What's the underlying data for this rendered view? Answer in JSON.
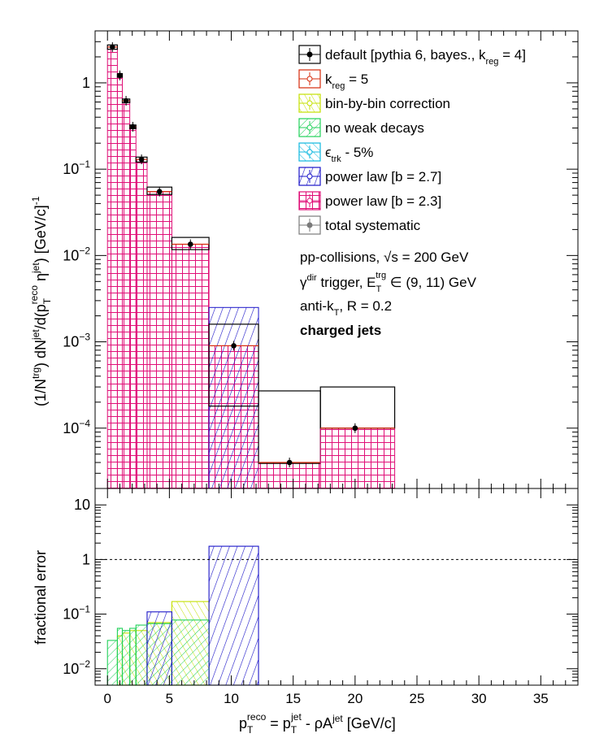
{
  "chart_data": [
    {
      "type": "bar",
      "panel": "spectrum",
      "scale": "log",
      "ylabel": "(1/N^trg) dN^jet/d(p_T^reco η^jet) [GeV/c]^-1",
      "ylim": [
        2e-05,
        4
      ],
      "xlim": [
        -1,
        38
      ],
      "y_ticks": [
        {
          "v": 0.0001,
          "base": "10",
          "exp": "−4"
        },
        {
          "v": 0.001,
          "base": "10",
          "exp": "−3"
        },
        {
          "v": 0.01,
          "base": "10",
          "exp": "−2"
        },
        {
          "v": 0.1,
          "base": "10",
          "exp": "−1"
        },
        {
          "v": 1,
          "base": "1",
          "exp": ""
        }
      ],
      "bins": [
        {
          "lo": 0.0,
          "hi": 0.8,
          "y": 2.6,
          "hi_band": 2.75,
          "lo_band": 2.45,
          "blue": false
        },
        {
          "lo": 0.8,
          "hi": 1.2,
          "y": 1.22,
          "hi_band": 1.28,
          "lo_band": 1.16,
          "blue": false
        },
        {
          "lo": 1.2,
          "hi": 1.8,
          "y": 0.62,
          "hi_band": 0.65,
          "lo_band": 0.59,
          "blue": false
        },
        {
          "lo": 1.8,
          "hi": 2.3,
          "y": 0.31,
          "hi_band": 0.325,
          "lo_band": 0.295,
          "blue": false
        },
        {
          "lo": 2.3,
          "hi": 3.2,
          "y": 0.13,
          "hi_band": 0.138,
          "lo_band": 0.121,
          "blue": false
        },
        {
          "lo": 3.2,
          "hi": 5.2,
          "y": 0.055,
          "hi_band": 0.062,
          "lo_band": 0.051,
          "blue": false
        },
        {
          "lo": 5.2,
          "hi": 8.2,
          "y": 0.0135,
          "hi_band": 0.0162,
          "lo_band": 0.0117,
          "blue": false
        },
        {
          "lo": 8.2,
          "hi": 12.2,
          "y": 0.0009,
          "hi_band": 0.0016,
          "lo_band": 0.00018,
          "blue": true,
          "blue_top": 0.0025
        },
        {
          "lo": 12.2,
          "hi": 17.2,
          "y": 4e-05,
          "hi_band": 0.00027,
          "lo_band": 3.9e-05,
          "blue": false
        },
        {
          "lo": 17.2,
          "hi": 23.2,
          "y": 0.0001,
          "hi_band": 0.0003,
          "lo_band": 0.0001,
          "blue": false
        }
      ],
      "points": [
        {
          "x": 0.4,
          "y": 2.6
        },
        {
          "x": 1.0,
          "y": 1.22
        },
        {
          "x": 1.5,
          "y": 0.62
        },
        {
          "x": 2.05,
          "y": 0.31
        },
        {
          "x": 2.75,
          "y": 0.13
        },
        {
          "x": 4.2,
          "y": 0.055
        },
        {
          "x": 6.7,
          "y": 0.0135
        },
        {
          "x": 10.2,
          "y": 0.0009
        },
        {
          "x": 14.7,
          "y": 4e-05
        },
        {
          "x": 20.0,
          "y": 0.0001
        }
      ]
    },
    {
      "type": "bar",
      "panel": "fractional",
      "scale": "log",
      "ylabel": "fractional error",
      "ylim": [
        0.005,
        20
      ],
      "reference_line": 1,
      "y_ticks": [
        {
          "v": 0.01,
          "base": "10",
          "exp": "−2"
        },
        {
          "v": 0.1,
          "base": "10",
          "exp": "−1"
        },
        {
          "v": 1,
          "base": "1",
          "exp": ""
        },
        {
          "v": 10,
          "base": "10",
          "exp": ""
        }
      ],
      "series": [
        {
          "name": "bin-by-bin correction",
          "color": "#c4e000",
          "bins": [
            [
              0.8,
              1.2,
              0.04
            ],
            [
              1.2,
              1.8,
              0.045
            ],
            [
              1.8,
              2.3,
              0.05
            ],
            [
              2.3,
              3.2,
              0.05
            ],
            [
              3.2,
              5.2,
              0.07
            ],
            [
              5.2,
              8.2,
              0.17
            ]
          ]
        },
        {
          "name": "no weak decays",
          "color": "#22d15a",
          "bins": [
            [
              0.0,
              0.8,
              0.033
            ],
            [
              0.8,
              1.2,
              0.055
            ],
            [
              1.2,
              1.8,
              0.05
            ],
            [
              1.8,
              2.3,
              0.055
            ],
            [
              2.3,
              3.2,
              0.063
            ],
            [
              3.2,
              5.2,
              0.067
            ],
            [
              5.2,
              8.2,
              0.078
            ]
          ]
        },
        {
          "name": "power law [b = 2.7]",
          "color": "#1a14c8",
          "bins": [
            [
              3.2,
              5.2,
              0.11
            ],
            [
              8.2,
              12.2,
              1.75
            ]
          ]
        }
      ]
    }
  ],
  "x_axis": {
    "title_parts": [
      "p",
      "T",
      "reco",
      " = p",
      "T",
      "jet",
      " - ρA",
      "jet",
      " [GeV/c]"
    ],
    "ticks": [
      "0",
      "5",
      "10",
      "15",
      "20",
      "25",
      "30",
      "35"
    ]
  },
  "legend": {
    "entries": [
      {
        "name": "default [pythia 6, bayes., k",
        "sub": "reg",
        "tail": " = 4]",
        "color": "#000000",
        "style": "default"
      },
      {
        "name": "k",
        "sub": "reg",
        "tail": " = 5",
        "color": "#d62a0a",
        "style": "k5"
      },
      {
        "name": "bin-by-bin correction",
        "sub": "",
        "tail": "",
        "color": "#c4e000",
        "style": "hatch"
      },
      {
        "name": "no weak decays",
        "sub": "",
        "tail": "",
        "color": "#22d15a",
        "style": "hatch"
      },
      {
        "name": "ϵ",
        "sub": "trk",
        "tail": " - 5%",
        "color": "#0fb8e0",
        "style": "hatch"
      },
      {
        "name": "power law [b = 2.7]",
        "sub": "",
        "tail": "",
        "color": "#1a14c8",
        "style": "hatch"
      },
      {
        "name": "power law [b = 2.3]",
        "sub": "",
        "tail": "",
        "color": "#e01078",
        "style": "grid"
      },
      {
        "name": "total systematic",
        "sub": "",
        "tail": "",
        "color": "#7a7a7a",
        "style": "total"
      }
    ]
  },
  "annotations": {
    "line1": "pp-collisions, ",
    "line1_sqrt": "√s",
    "line1_tail": " = 200 GeV",
    "line2_a": "γ",
    "line2_sup": "dir",
    "line2_b": " trigger, E",
    "line2_sub": "T",
    "line2_sup2": "trg",
    "line2_c": " ∈ (9, 11) GeV",
    "line3_a": "anti-k",
    "line3_sub": "T",
    "line3_b": ", R = 0.2",
    "line4": "charged jets"
  },
  "colors": {
    "grid_magenta": "#e01078",
    "red_outline": "#d62a0a",
    "blue_hatch": "#1a14c8",
    "black": "#000000"
  }
}
